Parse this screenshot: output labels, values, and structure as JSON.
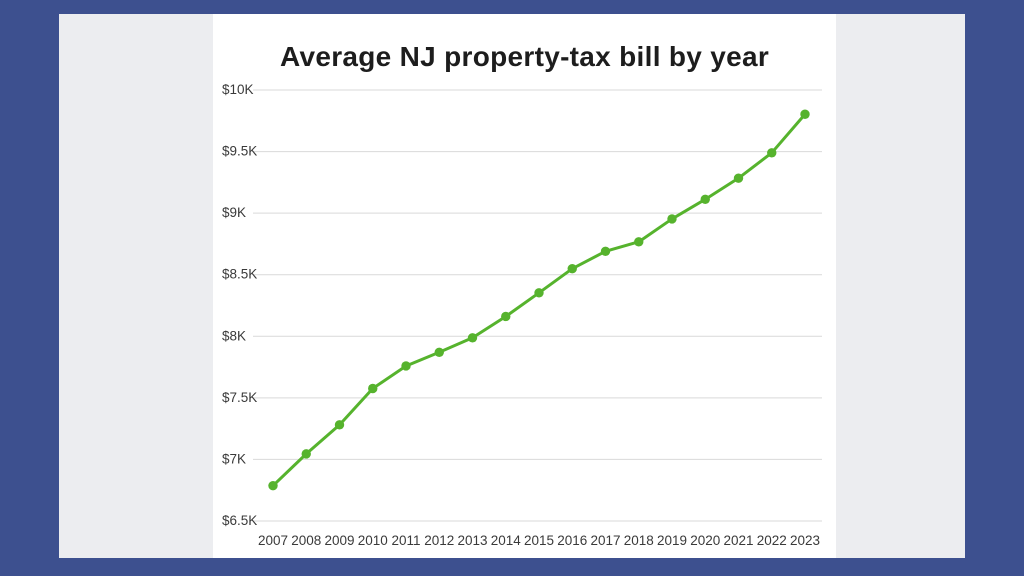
{
  "frame": {
    "outer_color": "#3d508f",
    "panel_color": "#ecedf0",
    "card_color": "#ffffff"
  },
  "chart_data": {
    "type": "line",
    "title": "Average NJ property-tax bill by year",
    "xlabel": "",
    "ylabel": "",
    "categories": [
      "2007",
      "2008",
      "2009",
      "2010",
      "2011",
      "2012",
      "2013",
      "2014",
      "2015",
      "2016",
      "2017",
      "2018",
      "2019",
      "2020",
      "2021",
      "2022",
      "2023"
    ],
    "values": [
      6787,
      7045,
      7281,
      7576,
      7759,
      7870,
      7988,
      8161,
      8353,
      8549,
      8690,
      8767,
      8953,
      9112,
      9284,
      9490,
      9803
    ],
    "ylim": [
      6500,
      10000
    ],
    "yticks": [
      {
        "value": 10000,
        "label": "$10K"
      },
      {
        "value": 9500,
        "label": "$9.5K"
      },
      {
        "value": 9000,
        "label": "$9K"
      },
      {
        "value": 8500,
        "label": "$8.5K"
      },
      {
        "value": 8000,
        "label": "$8K"
      },
      {
        "value": 7500,
        "label": "$7.5K"
      },
      {
        "value": 7000,
        "label": "$7K"
      },
      {
        "value": 6500,
        "label": "$6.5K"
      }
    ],
    "grid": "horizontal",
    "legend": "none",
    "line_color": "#56b32d",
    "marker_color": "#56b32d",
    "grid_color": "#d9d9d9",
    "tick_text_color": "#3a3a3a",
    "title_color": "#1d1d1d"
  }
}
